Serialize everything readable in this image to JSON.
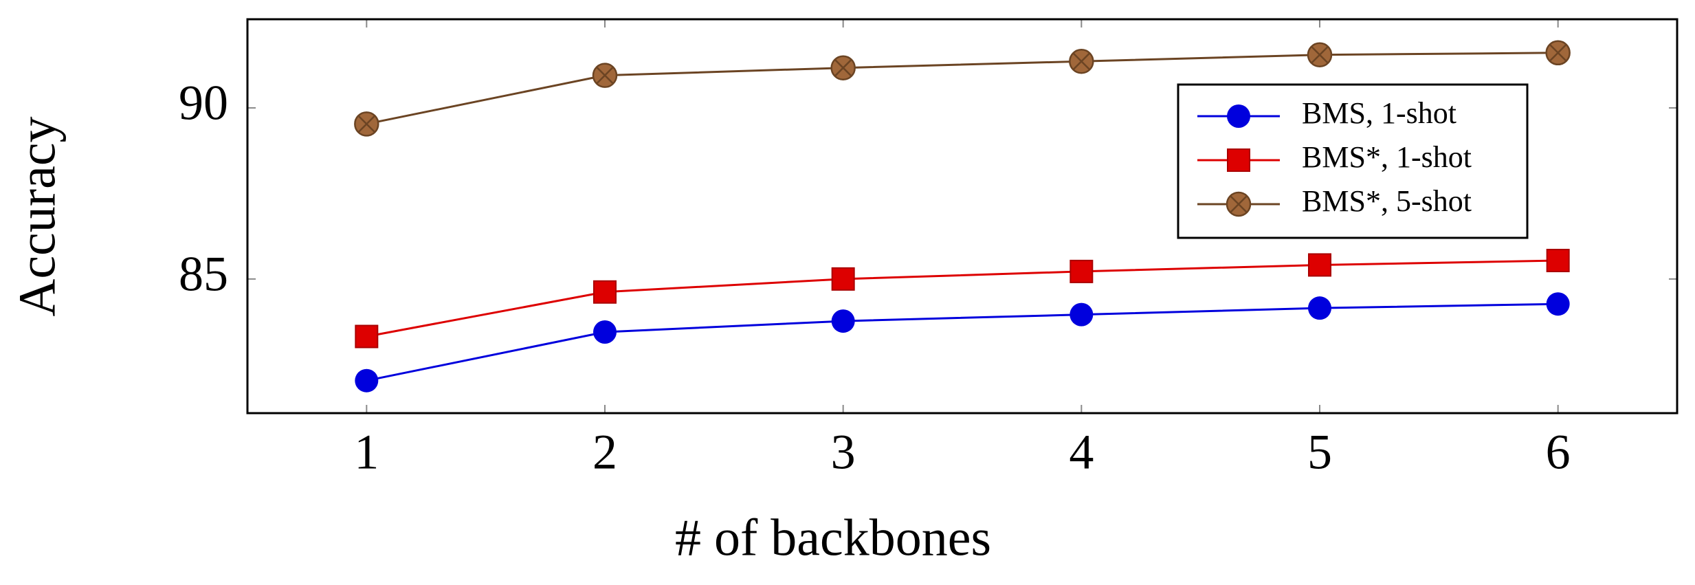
{
  "chart_data": {
    "type": "line",
    "x_label": "# of backbones",
    "y_label": "Accuracy",
    "x": [
      1,
      2,
      3,
      4,
      5,
      6
    ],
    "series": [
      {
        "name": "BMS, 1-shot",
        "color": "#0000dd",
        "marker": "circle",
        "values": [
          82.03,
          83.45,
          83.77,
          83.96,
          84.15,
          84.27
        ]
      },
      {
        "name": "BMS*, 1-shot",
        "color": "#dd0000",
        "marker": "square",
        "values": [
          83.32,
          84.62,
          85.0,
          85.22,
          85.41,
          85.54
        ]
      },
      {
        "name": "BMS*, 5-shot",
        "color": "#6b4423",
        "marker": "otimes",
        "values": [
          89.53,
          90.95,
          91.17,
          91.36,
          91.55,
          91.61
        ]
      }
    ],
    "xlim": [
      0.5,
      6.5
    ],
    "xticks": [
      1,
      2,
      3,
      4,
      5,
      6
    ],
    "ylim": [
      81.08,
      92.59
    ],
    "yticks": [
      85,
      90
    ],
    "grid": false,
    "legend": "upper right"
  }
}
